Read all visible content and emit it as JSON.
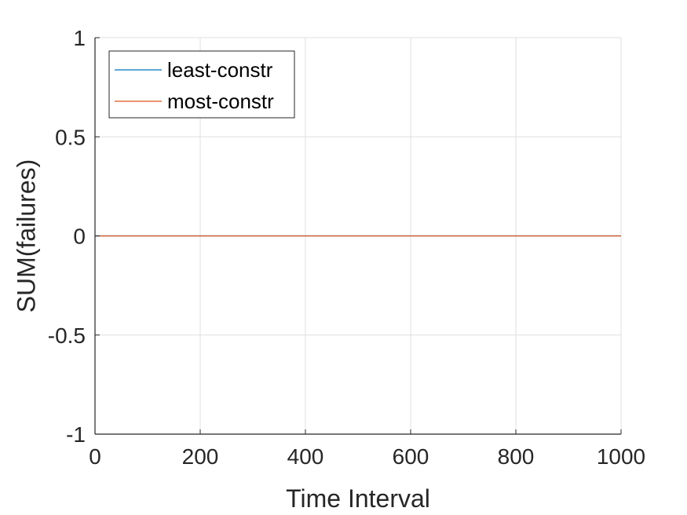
{
  "chart_data": {
    "type": "line",
    "title": "",
    "xlabel": "Time Interval",
    "ylabel": "SUM(failures)",
    "xlim": [
      0,
      1000
    ],
    "ylim": [
      -1,
      1
    ],
    "xticks": [
      0,
      200,
      400,
      600,
      800,
      1000
    ],
    "xtick_labels": [
      "0",
      "200",
      "400",
      "600",
      "800",
      "1000"
    ],
    "yticks": [
      -1,
      -0.5,
      0,
      0.5,
      1
    ],
    "ytick_labels": [
      "-1",
      "-0.5",
      "0",
      "0.5",
      "1"
    ],
    "grid": true,
    "legend_position": "top-left",
    "series": [
      {
        "name": "least-constr",
        "color": "#0072BD",
        "x": [
          0,
          1000
        ],
        "y": [
          0,
          0
        ]
      },
      {
        "name": "most-constr",
        "color": "#D95319",
        "x": [
          0,
          1000
        ],
        "y": [
          0,
          0
        ]
      }
    ]
  }
}
